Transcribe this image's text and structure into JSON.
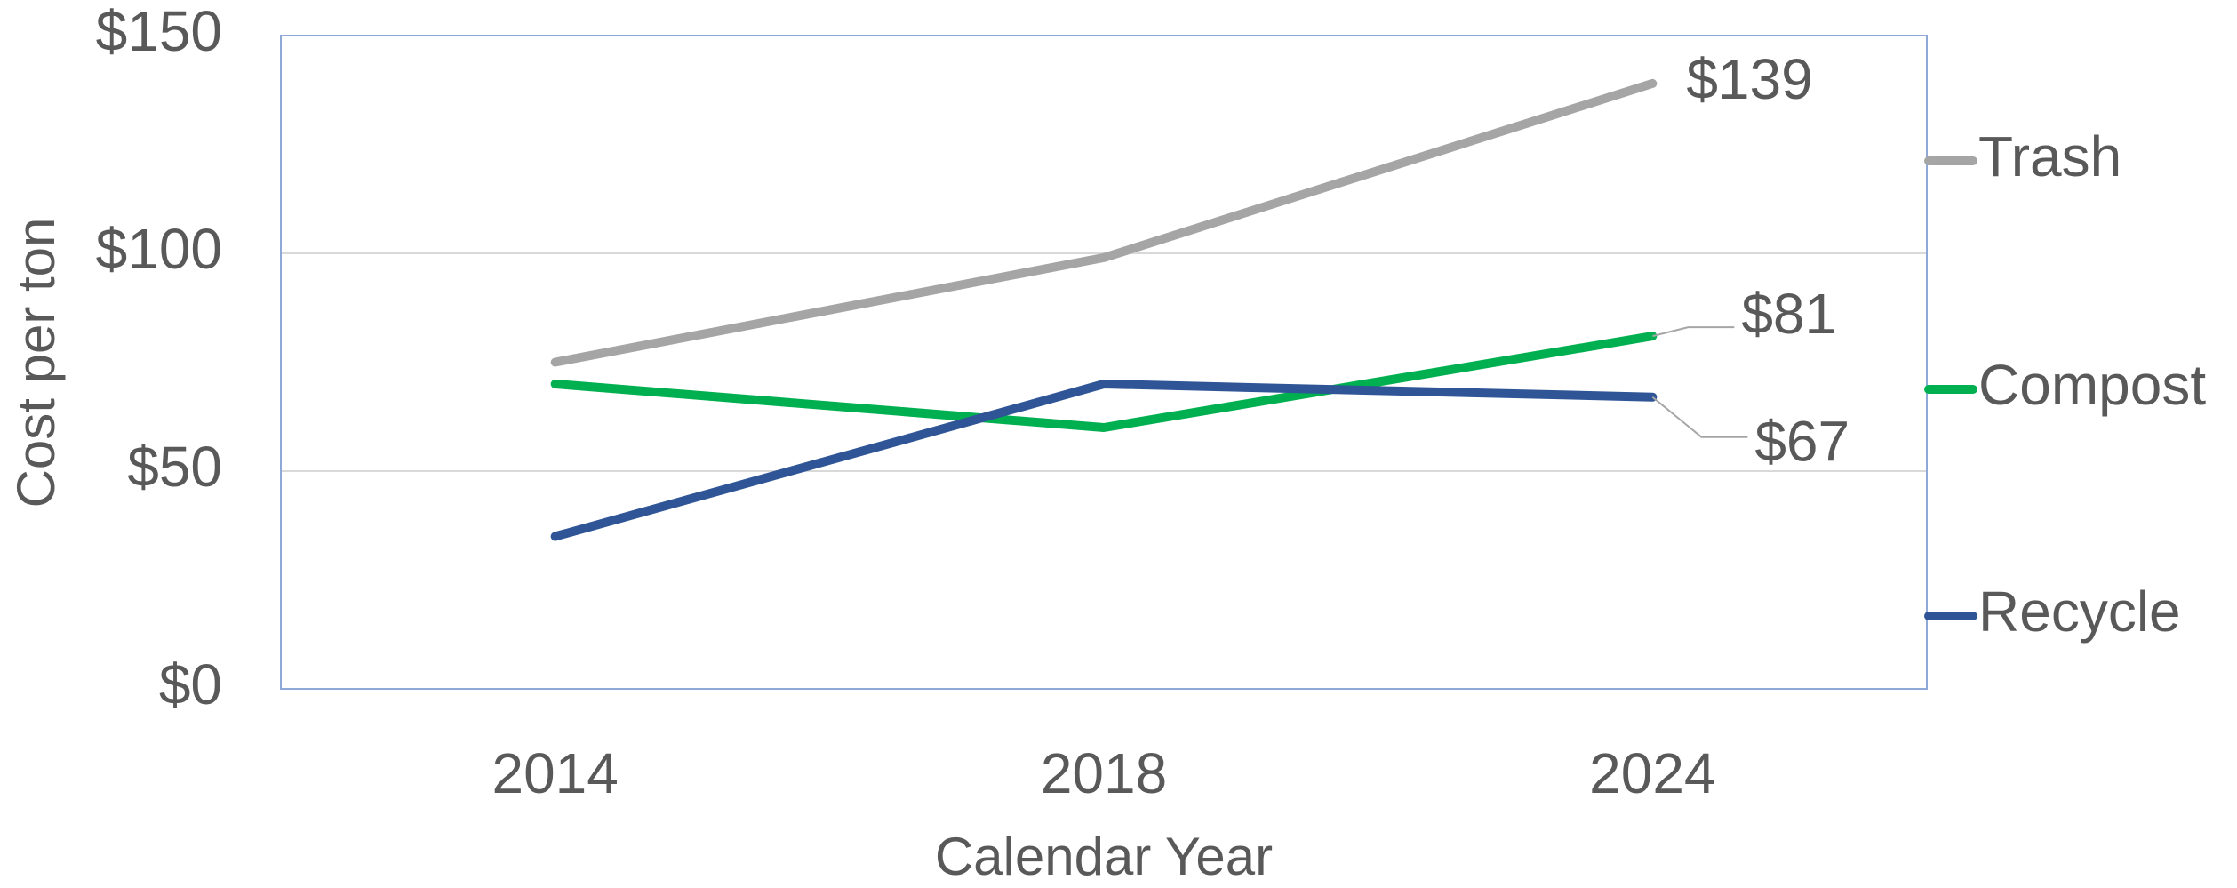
{
  "chart_data": {
    "type": "line",
    "x_label": "Calendar Year",
    "y_label": "Cost per ton",
    "categories": [
      "2014",
      "2018",
      "2024"
    ],
    "series": [
      {
        "name": "Trash",
        "color": "#a5a5a5",
        "values": [
          75,
          99,
          139
        ],
        "value_labels": [
          null,
          null,
          "$139"
        ]
      },
      {
        "name": "Compost",
        "color": "#00b050",
        "values": [
          70,
          60,
          81
        ],
        "value_labels": [
          null,
          null,
          "$81"
        ]
      },
      {
        "name": "Recycle",
        "color": "#2f5597",
        "values": [
          35,
          70,
          67
        ],
        "value_labels": [
          null,
          null,
          "$67"
        ]
      }
    ],
    "ylim": [
      0,
      150
    ],
    "yticks": [
      {
        "value": 0,
        "label": "$0"
      },
      {
        "value": 50,
        "label": "$50"
      },
      {
        "value": 100,
        "label": "$100"
      },
      {
        "value": 150,
        "label": "$150"
      }
    ],
    "grid": true,
    "legend": "right"
  }
}
